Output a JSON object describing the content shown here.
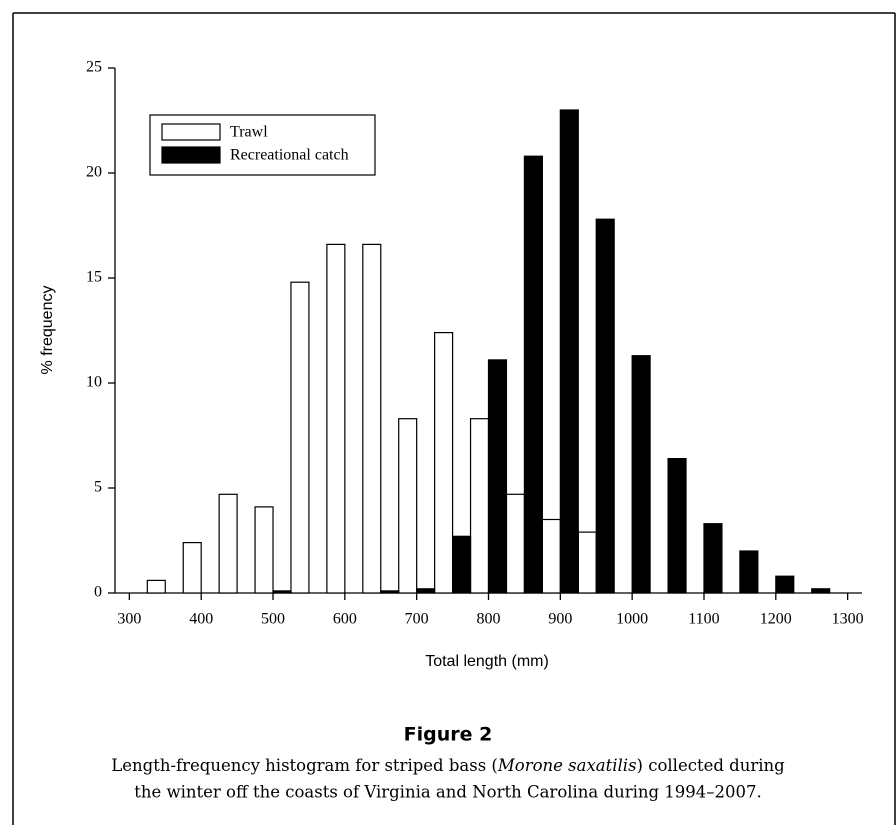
{
  "chart_data": {
    "type": "bar",
    "figure_label": "Figure 2",
    "caption": [
      "Length-frequency histogram for striped bass (",
      "Morone saxatilis",
      ") collected during",
      "the winter off the coasts of Virginia and North Carolina during 1994–2007."
    ],
    "xlabel": "Total length (mm)",
    "ylabel": "% frequency",
    "x": [
      350,
      400,
      450,
      500,
      550,
      600,
      650,
      700,
      750,
      800,
      850,
      900,
      950,
      1000,
      1050,
      1100,
      1150,
      1200,
      1250
    ],
    "bar_width": 25,
    "series": [
      {
        "name": "Trawl",
        "color": "#ffffff",
        "values": [
          0.6,
          2.4,
          4.7,
          4.1,
          14.8,
          16.6,
          16.6,
          8.3,
          12.4,
          8.3,
          4.7,
          3.5,
          2.9,
          0,
          0,
          0,
          0,
          0,
          0
        ]
      },
      {
        "name": "Recreational catch",
        "color": "#000000",
        "values": [
          0,
          0,
          0,
          0.1,
          0,
          0,
          0.1,
          0.2,
          2.7,
          11.1,
          20.8,
          23.0,
          17.8,
          11.3,
          6.4,
          3.3,
          2.0,
          0.8,
          0.2
        ]
      }
    ],
    "xlim": [
      280,
      1320
    ],
    "xticks": [
      300,
      400,
      500,
      600,
      700,
      800,
      900,
      1000,
      1100,
      1200,
      1300
    ],
    "ylim": [
      0,
      25
    ],
    "yticks": [
      0,
      5,
      10,
      15,
      20,
      25
    ],
    "legend": "upper-left"
  }
}
